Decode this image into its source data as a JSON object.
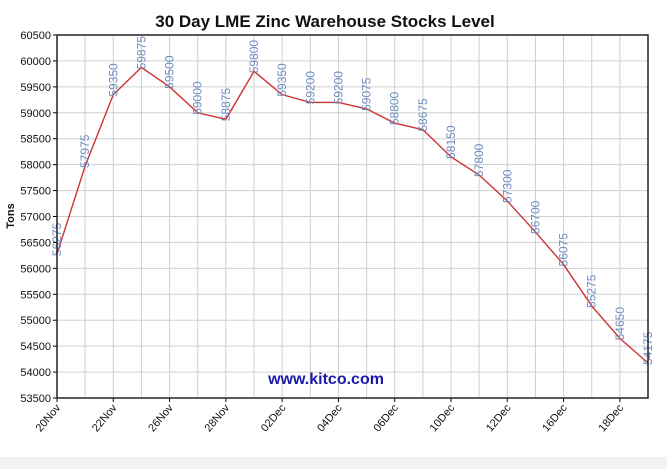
{
  "chart_data": {
    "type": "line",
    "title": "30 Day LME Zinc Warehouse Stocks Level",
    "ylabel": "Tons",
    "xlabel": "",
    "watermark": "www.kitco.com",
    "ylim": [
      53500,
      60500
    ],
    "ytick_step": 500,
    "yticks": [
      "53500",
      "54000",
      "54500",
      "55000",
      "55500",
      "56000",
      "56500",
      "57000",
      "57500",
      "58000",
      "58500",
      "59000",
      "59500",
      "60000",
      "60500"
    ],
    "xtick_labels": [
      "20Nov",
      "22Nov",
      "26Nov",
      "28Nov",
      "02Dec",
      "04Dec",
      "06Dec",
      "10Dec",
      "12Dec",
      "16Dec",
      "18Dec"
    ],
    "xtick_every": 2,
    "grid": true,
    "series": [
      {
        "name": "Stocks",
        "color": "#cc3333",
        "label_color": "#6e8cc0",
        "values": [
          56275,
          57975,
          59350,
          59875,
          59500,
          59000,
          58875,
          59800,
          59350,
          59200,
          59200,
          59075,
          58800,
          58675,
          58150,
          57800,
          57300,
          56700,
          56075,
          55275,
          54650,
          54175
        ]
      }
    ]
  }
}
